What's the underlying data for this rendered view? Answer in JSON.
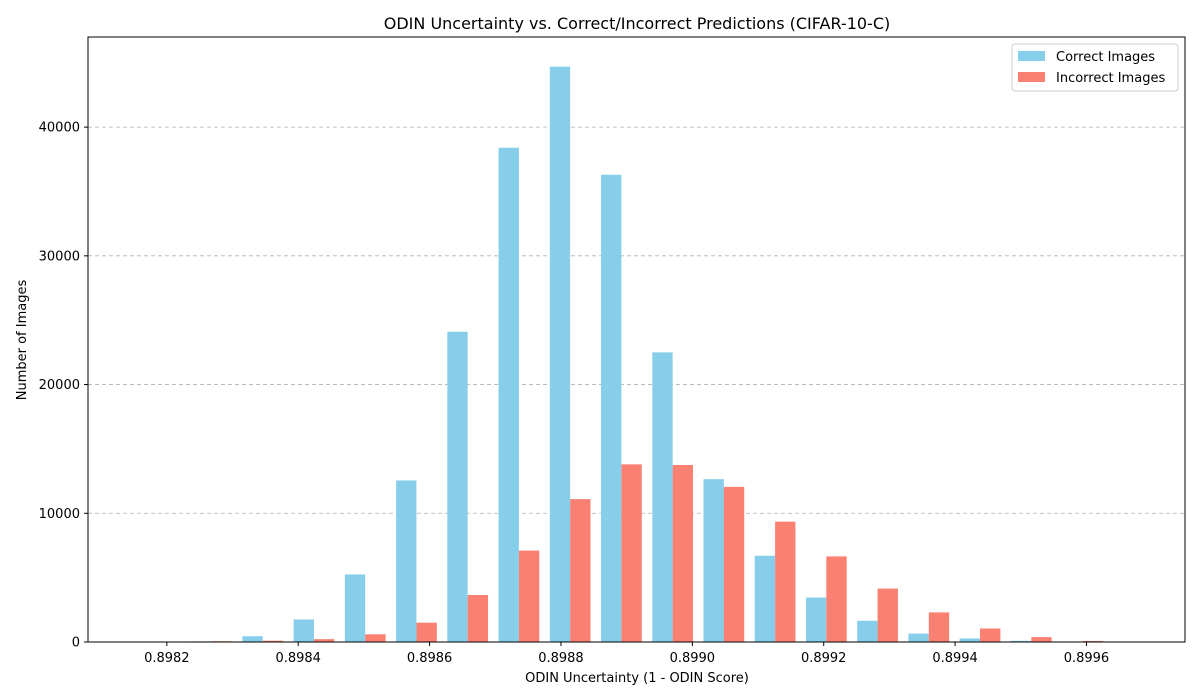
{
  "chart_data": {
    "type": "bar",
    "title": "ODIN Uncertainty vs. Correct/Incorrect Predictions (CIFAR-10-C)",
    "xlabel": "ODIN Uncertainty (1 - ODIN Score)",
    "ylabel": "Number of Images",
    "xlim": [
      0.89808,
      0.89975
    ],
    "ylim": [
      0,
      47000
    ],
    "x_ticks": [
      0.8982,
      0.8984,
      0.8986,
      0.8988,
      0.899,
      0.8992,
      0.8994,
      0.8996
    ],
    "x_tick_labels": [
      "0.8982",
      "0.8984",
      "0.8986",
      "0.8988",
      "0.8990",
      "0.8992",
      "0.8994",
      "0.8996"
    ],
    "y_ticks": [
      0,
      10000,
      20000,
      30000,
      40000
    ],
    "y_tick_labels": [
      "0",
      "10000",
      "20000",
      "30000",
      "40000"
    ],
    "grid": "y-dashed",
    "legend_position": "top-right",
    "x": [
      0.89819,
      0.898268,
      0.898346,
      0.898424,
      0.898502,
      0.89858,
      0.898658,
      0.898736,
      0.898814,
      0.898892,
      0.89897,
      0.899048,
      0.899126,
      0.899204,
      0.899282,
      0.89936,
      0.899438,
      0.899516,
      0.899594,
      0.899672
    ],
    "series": [
      {
        "name": "Correct Images",
        "color": "#87CEEB",
        "offset": -1.55e-05,
        "values": [
          0,
          50,
          450,
          1750,
          5250,
          12550,
          24100,
          38400,
          44700,
          36300,
          22500,
          12650,
          6700,
          3450,
          1650,
          650,
          280,
          90,
          20,
          0
        ]
      },
      {
        "name": "Incorrect Images",
        "color": "#FA8072",
        "offset": 1.55e-05,
        "values": [
          0,
          60,
          100,
          220,
          600,
          1500,
          3650,
          7100,
          11100,
          13800,
          13750,
          12050,
          9350,
          6650,
          4150,
          2300,
          1050,
          380,
          80,
          10
        ]
      }
    ]
  }
}
